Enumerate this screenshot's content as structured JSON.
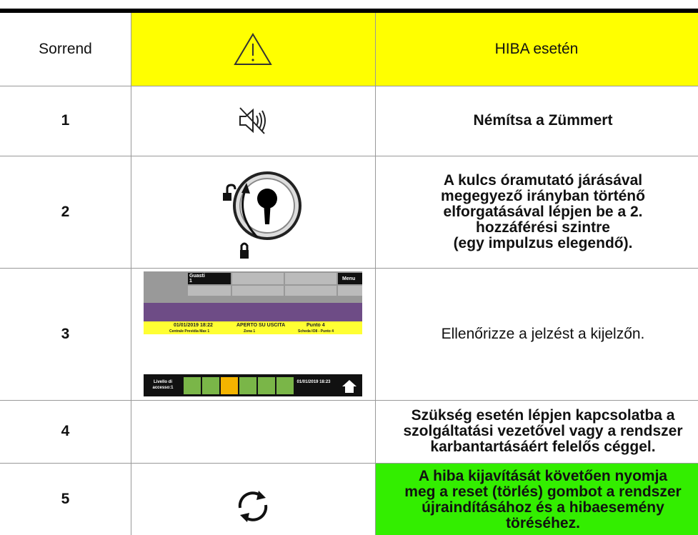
{
  "header": {
    "order": "Sorrend",
    "title": "HIBA esetén"
  },
  "rows": [
    {
      "number": "1",
      "text": [
        "Némítsa a Zümmert"
      ]
    },
    {
      "number": "2",
      "text": [
        "A kulcs óramutató járásával",
        "megegyező irányban történő",
        "elforgatásával lépjen be a 2.",
        "hozzáférési szintre",
        "(egy impulzus elegendő)."
      ]
    },
    {
      "number": "3",
      "text": [
        "Ellenőrizze a jelzést a kijelzőn."
      ],
      "screen": {
        "fault_label": "Guasti",
        "fault_count": "1",
        "menu": "Menu",
        "event_time": "01/01/2019 18:22",
        "event_name": "APERTO SU USCITA",
        "event_point": "Punto 4",
        "panel": "Centrale Previdia Max 1",
        "zone": "Zona 1",
        "board": "Scheda IO8 - Punto 4",
        "access_level": "Livello di accesso:1",
        "clock": "01/01/2019 18:23"
      }
    },
    {
      "number": "4",
      "text": [
        "Szükség esetén lépjen kapcsolatba a",
        "szolgáltatási vezetővel vagy a rendszer",
        "karbantartásáért felelős céggel."
      ]
    },
    {
      "number": "5",
      "text": [
        "A hiba kijavítását követően nyomja",
        "meg a reset (törlés) gombot a rendszer",
        "újraindításához és a hibaesemény",
        "töréséhez."
      ]
    }
  ]
}
